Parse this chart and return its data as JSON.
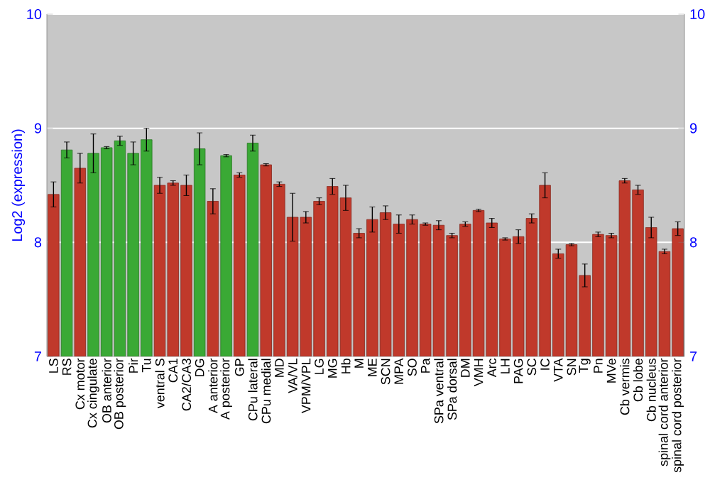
{
  "chart_data": {
    "type": "bar",
    "ylabel": "Log2 (expression)",
    "categories": [
      "LS",
      "RS",
      "Cx motor",
      "Cx cingulate",
      "OB anterior",
      "OB posterior",
      "Pir",
      "Tu",
      "ventral S",
      "CA1",
      "CA2/CA3",
      "DG",
      "A anterior",
      "A posterior",
      "GP",
      "CPu lateral",
      "CPu medial",
      "MD",
      "VA/VL",
      "VPM/VPL",
      "LG",
      "MG",
      "Hb",
      "M",
      "ME",
      "SCN",
      "MPA",
      "SO",
      "Pa",
      "SPa ventral",
      "SPa dorsal",
      "DM",
      "VMH",
      "Arc",
      "LH",
      "PAG",
      "SC",
      "IC",
      "VTA",
      "SN",
      "Tg",
      "Pn",
      "MVe",
      "Cb vermis",
      "Cb lobe",
      "Cb nucleus",
      "spinal cord anterior",
      "spinal cord posterior"
    ],
    "values": [
      8.42,
      8.81,
      8.65,
      8.78,
      8.83,
      8.89,
      8.78,
      8.9,
      8.5,
      8.52,
      8.5,
      8.82,
      8.36,
      8.76,
      8.59,
      8.87,
      8.68,
      8.51,
      8.22,
      8.22,
      8.36,
      8.49,
      8.39,
      8.08,
      8.2,
      8.26,
      8.16,
      8.2,
      8.16,
      8.15,
      8.06,
      8.16,
      8.28,
      8.17,
      8.03,
      8.05,
      8.21,
      8.5,
      7.9,
      7.98,
      7.71,
      8.07,
      8.06,
      8.54,
      8.46,
      8.13,
      7.92,
      8.12
    ],
    "errors": [
      0.11,
      0.07,
      0.13,
      0.17,
      0.01,
      0.04,
      0.1,
      0.1,
      0.07,
      0.02,
      0.09,
      0.14,
      0.11,
      0.01,
      0.02,
      0.07,
      0.01,
      0.02,
      0.21,
      0.05,
      0.03,
      0.07,
      0.11,
      0.04,
      0.11,
      0.06,
      0.08,
      0.04,
      0.01,
      0.04,
      0.02,
      0.02,
      0.01,
      0.04,
      0.01,
      0.06,
      0.04,
      0.11,
      0.04,
      0.01,
      0.1,
      0.02,
      0.02,
      0.02,
      0.04,
      0.09,
      0.02,
      0.06
    ],
    "colors": [
      "#c0392b",
      "#3aa935",
      "#c0392b",
      "#3aa935",
      "#3aa935",
      "#3aa935",
      "#3aa935",
      "#3aa935",
      "#c0392b",
      "#c0392b",
      "#c0392b",
      "#3aa935",
      "#c0392b",
      "#3aa935",
      "#c0392b",
      "#3aa935",
      "#c0392b",
      "#c0392b",
      "#c0392b",
      "#c0392b",
      "#c0392b",
      "#c0392b",
      "#c0392b",
      "#c0392b",
      "#c0392b",
      "#c0392b",
      "#c0392b",
      "#c0392b",
      "#c0392b",
      "#c0392b",
      "#c0392b",
      "#c0392b",
      "#c0392b",
      "#c0392b",
      "#c0392b",
      "#c0392b",
      "#c0392b",
      "#c0392b",
      "#c0392b",
      "#c0392b",
      "#c0392b",
      "#c0392b",
      "#c0392b",
      "#c0392b",
      "#c0392b",
      "#c0392b",
      "#c0392b",
      "#c0392b"
    ],
    "ylim": [
      7,
      10
    ],
    "yticks": [
      7,
      8,
      9,
      10
    ],
    "y2lim": [
      7,
      10
    ],
    "y2ticks": [
      7,
      8,
      9,
      10
    ],
    "grid": "y"
  }
}
